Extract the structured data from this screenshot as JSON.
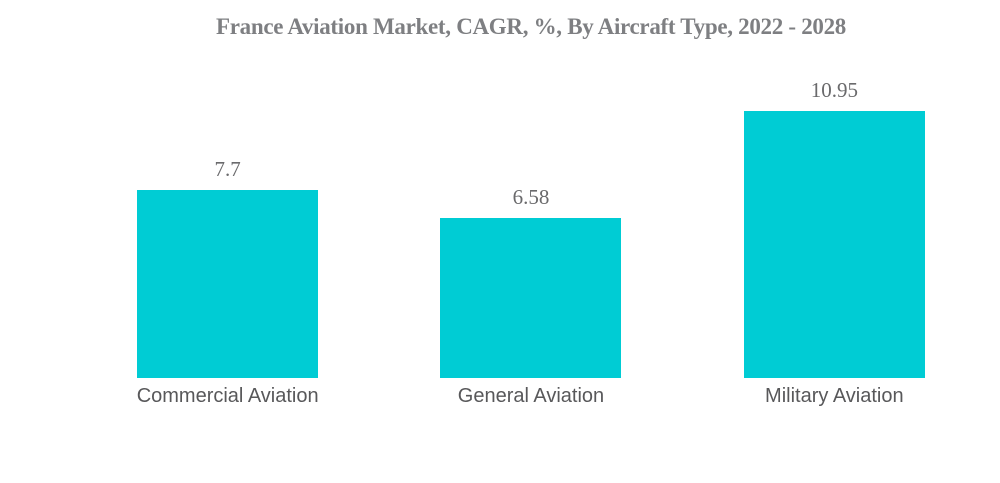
{
  "chart_data": {
    "type": "bar",
    "title": "France Aviation Market, CAGR, %, By Aircraft Type, 2022 - 2028",
    "categories": [
      "Commercial Aviation",
      "General Aviation",
      "Military Aviation"
    ],
    "values": [
      7.7,
      6.58,
      10.95
    ],
    "value_labels": [
      "7.7",
      "6.58",
      "10.95"
    ],
    "xlabel": "",
    "ylabel": "",
    "ylim": [
      0,
      12
    ],
    "grid": false,
    "legend_position": "none",
    "background_color": "#FFFFFF",
    "bar_color": "#00CCD4",
    "title_color": "#7E7F82",
    "value_label_color": "#6A6A6C",
    "category_label_color": "#58585A"
  }
}
